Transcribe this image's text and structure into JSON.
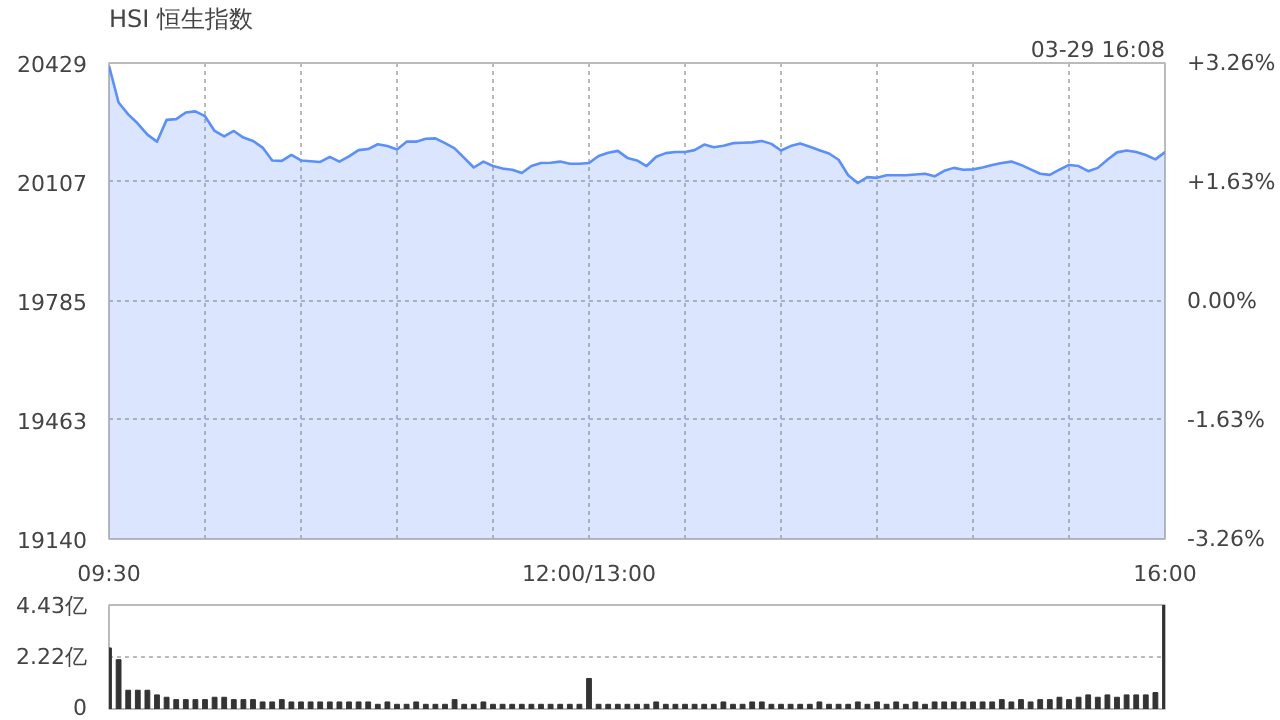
{
  "chart_data": [
    {
      "type": "area",
      "title": "HSI 恒生指数",
      "annotations": [
        "03-29 16:08"
      ],
      "grid": true,
      "categories": [
        "09:30",
        null,
        null,
        null,
        null,
        null,
        null,
        null,
        null,
        null,
        null,
        null,
        null,
        null,
        null,
        null,
        null,
        null,
        null,
        null,
        null,
        null,
        null,
        null,
        null,
        null,
        null,
        null,
        null,
        null,
        null,
        null,
        null,
        null,
        null,
        null,
        null,
        null,
        null,
        null,
        null,
        null,
        null,
        null,
        null,
        null,
        null,
        null,
        null,
        null,
        "12:00/13:00",
        null,
        null,
        null,
        null,
        null,
        null,
        null,
        null,
        null,
        null,
        null,
        null,
        null,
        null,
        null,
        null,
        null,
        null,
        null,
        null,
        null,
        null,
        null,
        null,
        null,
        null,
        null,
        null,
        null,
        null,
        null,
        null,
        null,
        null,
        null,
        null,
        null,
        null,
        null,
        null,
        null,
        null,
        null,
        null,
        null,
        null,
        null,
        null,
        null,
        null,
        null,
        null,
        null,
        null,
        null,
        null,
        null,
        null,
        null,
        "16:00"
      ],
      "series": [
        {
          "color": "#5b8ff9",
          "values": [
            20421,
            20322,
            20290,
            20265,
            20235,
            20216,
            20275,
            20277,
            20295,
            20298,
            20285,
            20245,
            20230,
            20245,
            20227,
            20218,
            20200,
            20165,
            20164,
            20180,
            20165,
            20163,
            20161,
            20175,
            20162,
            20176,
            20193,
            20196,
            20209,
            20204,
            20195,
            20216,
            20216,
            20224,
            20225,
            20212,
            20198,
            20172,
            20146,
            20162,
            20150,
            20143,
            20140,
            20131,
            20150,
            20158,
            20159,
            20162,
            20156,
            20156,
            20158,
            20177,
            20186,
            20191,
            20172,
            20165,
            20150,
            20175,
            20185,
            20188,
            20188,
            20193,
            20208,
            20201,
            20205,
            20212,
            20213,
            20214,
            20218,
            20210,
            20192,
            20204,
            20211,
            20202,
            20193,
            20184,
            20167,
            20125,
            20104,
            20120,
            20118,
            20125,
            20125,
            20125,
            20127,
            20129,
            20122,
            20137,
            20145,
            20140,
            20141,
            20146,
            20153,
            20158,
            20162,
            20153,
            20141,
            20129,
            20126,
            20140,
            20153,
            20150,
            20136,
            20145,
            20167,
            20187,
            20192,
            20188,
            20180,
            20168,
            20188
          ]
        }
      ],
      "ylim": [
        19140,
        20429
      ],
      "yticks": [
        19140,
        19463,
        19785,
        20107,
        20429
      ],
      "y2lim": [
        -3.26,
        3.26
      ],
      "y2ticks": [
        {
          "value": -3.26,
          "label": "-3.26%"
        },
        {
          "value": -1.63,
          "label": "-1.63%"
        },
        {
          "value": 0,
          "label": "0.00%"
        },
        {
          "value": 1.63,
          "label": "+1.63%"
        },
        {
          "value": 3.26,
          "label": "+3.26%"
        }
      ]
    },
    {
      "type": "bar",
      "grid": "y",
      "tick_labels": "y",
      "categories": [
        null,
        null,
        null,
        null,
        null,
        null,
        null,
        null,
        null,
        null,
        null,
        null,
        null,
        null,
        null,
        null,
        null,
        null,
        null,
        null,
        null,
        null,
        null,
        null,
        null,
        null,
        null,
        null,
        null,
        null,
        null,
        null,
        null,
        null,
        null,
        null,
        null,
        null,
        null,
        null,
        null,
        null,
        null,
        null,
        null,
        null,
        null,
        null,
        null,
        null,
        null,
        null,
        null,
        null,
        null,
        null,
        null,
        null,
        null,
        null,
        null,
        null,
        null,
        null,
        null,
        null,
        null,
        null,
        null,
        null,
        null,
        null,
        null,
        null,
        null,
        null,
        null,
        null,
        null,
        null,
        null,
        null,
        null,
        null,
        null,
        null,
        null,
        null,
        null,
        null,
        null,
        null,
        null,
        null,
        null,
        null,
        null,
        null,
        null,
        null,
        null,
        null,
        null,
        null,
        null,
        null,
        null,
        null,
        null,
        null,
        null
      ],
      "series": [
        {
          "color": "#333333",
          "values": [
            2.6,
            2.1,
            0.8,
            0.8,
            0.8,
            0.6,
            0.5,
            0.4,
            0.4,
            0.4,
            0.4,
            0.5,
            0.5,
            0.4,
            0.4,
            0.4,
            0.3,
            0.3,
            0.4,
            0.3,
            0.3,
            0.3,
            0.3,
            0.3,
            0.3,
            0.3,
            0.3,
            0.3,
            0.2,
            0.3,
            0.2,
            0.2,
            0.3,
            0.2,
            0.2,
            0.2,
            0.4,
            0.2,
            0.2,
            0.3,
            0.2,
            0.2,
            0.2,
            0.2,
            0.2,
            0.2,
            0.2,
            0.2,
            0.2,
            0.2,
            1.3,
            0.2,
            0.2,
            0.2,
            0.2,
            0.2,
            0.2,
            0.3,
            0.2,
            0.2,
            0.2,
            0.2,
            0.2,
            0.2,
            0.3,
            0.2,
            0.2,
            0.3,
            0.3,
            0.2,
            0.2,
            0.2,
            0.2,
            0.2,
            0.3,
            0.2,
            0.2,
            0.2,
            0.3,
            0.2,
            0.3,
            0.2,
            0.3,
            0.2,
            0.3,
            0.2,
            0.3,
            0.3,
            0.3,
            0.3,
            0.3,
            0.3,
            0.3,
            0.4,
            0.3,
            0.4,
            0.3,
            0.4,
            0.4,
            0.5,
            0.4,
            0.5,
            0.6,
            0.5,
            0.6,
            0.5,
            0.6,
            0.6,
            0.6,
            0.7,
            4.43
          ]
        }
      ],
      "ylim": [
        0,
        4.43
      ],
      "yticks": [
        0,
        {
          "value": 2.22,
          "label": "2.22亿"
        },
        {
          "value": 4.43,
          "label": "4.43亿"
        }
      ]
    }
  ]
}
